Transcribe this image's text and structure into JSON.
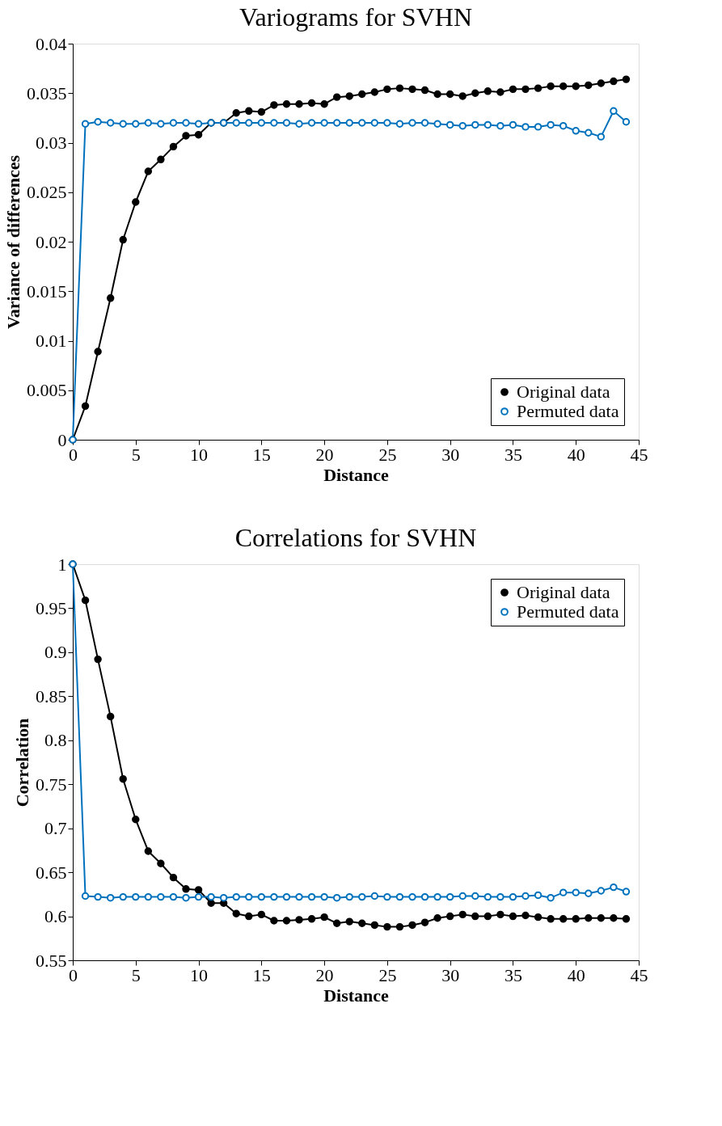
{
  "chart_data": [
    {
      "type": "line",
      "title": "Variograms for SVHN",
      "xlabel": "Distance",
      "ylabel": "Variance of differences",
      "x": [
        0,
        1,
        2,
        3,
        4,
        5,
        6,
        7,
        8,
        9,
        10,
        11,
        12,
        13,
        14,
        15,
        16,
        17,
        18,
        19,
        20,
        21,
        22,
        23,
        24,
        25,
        26,
        27,
        28,
        29,
        30,
        31,
        32,
        33,
        34,
        35,
        36,
        37,
        38,
        39,
        40,
        41,
        42,
        43,
        44
      ],
      "series": [
        {
          "name": "Original data",
          "color": "#000000",
          "values": [
            0,
            0.0034,
            0.0089,
            0.0143,
            0.0202,
            0.024,
            0.0271,
            0.0283,
            0.0296,
            0.0307,
            0.0308,
            0.032,
            0.032,
            0.033,
            0.0332,
            0.0331,
            0.0338,
            0.0339,
            0.0339,
            0.034,
            0.0339,
            0.0346,
            0.0347,
            0.0349,
            0.0351,
            0.0354,
            0.0355,
            0.0354,
            0.0353,
            0.0349,
            0.0349,
            0.0347,
            0.035,
            0.0352,
            0.0351,
            0.0354,
            0.0354,
            0.0355,
            0.0357,
            0.0357,
            0.0357,
            0.0358,
            0.036,
            0.0362,
            0.0364
          ]
        },
        {
          "name": "Permuted data",
          "color": "#0072bd",
          "values": [
            0,
            0.0319,
            0.0321,
            0.032,
            0.0319,
            0.0319,
            0.032,
            0.0319,
            0.032,
            0.032,
            0.0319,
            0.032,
            0.032,
            0.032,
            0.032,
            0.032,
            0.032,
            0.032,
            0.0319,
            0.032,
            0.032,
            0.032,
            0.032,
            0.032,
            0.032,
            0.032,
            0.0319,
            0.032,
            0.032,
            0.0319,
            0.0318,
            0.0317,
            0.0318,
            0.0318,
            0.0317,
            0.0318,
            0.0316,
            0.0316,
            0.0318,
            0.0317,
            0.0312,
            0.031,
            0.0306,
            0.0332,
            0.0321
          ]
        }
      ],
      "xlim": [
        0,
        45
      ],
      "xticks": [
        0,
        5,
        10,
        15,
        20,
        25,
        30,
        35,
        40,
        45
      ],
      "ylim": [
        0,
        0.04
      ],
      "yticks": [
        0,
        0.005,
        0.01,
        0.015,
        0.02,
        0.025,
        0.03,
        0.035,
        0.04
      ],
      "marker": "circle",
      "line_style": "solid",
      "grid": false,
      "legend": "bottom right"
    },
    {
      "type": "line",
      "title": "Correlations for SVHN",
      "xlabel": "Distance",
      "ylabel": "Correlation",
      "x": [
        0,
        1,
        2,
        3,
        4,
        5,
        6,
        7,
        8,
        9,
        10,
        11,
        12,
        13,
        14,
        15,
        16,
        17,
        18,
        19,
        20,
        21,
        22,
        23,
        24,
        25,
        26,
        27,
        28,
        29,
        30,
        31,
        32,
        33,
        34,
        35,
        36,
        37,
        38,
        39,
        40,
        41,
        42,
        43,
        44
      ],
      "series": [
        {
          "name": "Original data",
          "color": "#000000",
          "values": [
            1,
            0.959,
            0.892,
            0.827,
            0.756,
            0.71,
            0.674,
            0.66,
            0.644,
            0.631,
            0.63,
            0.615,
            0.615,
            0.603,
            0.6,
            0.602,
            0.595,
            0.595,
            0.596,
            0.597,
            0.599,
            0.592,
            0.594,
            0.592,
            0.59,
            0.588,
            0.588,
            0.59,
            0.593,
            0.598,
            0.6,
            0.602,
            0.6,
            0.6,
            0.602,
            0.6,
            0.601,
            0.599,
            0.597,
            0.597,
            0.597,
            0.598,
            0.598,
            0.598,
            0.597
          ]
        },
        {
          "name": "Permuted data",
          "color": "#0072bd",
          "values": [
            1,
            0.623,
            0.622,
            0.621,
            0.622,
            0.622,
            0.622,
            0.622,
            0.622,
            0.621,
            0.622,
            0.622,
            0.621,
            0.622,
            0.622,
            0.622,
            0.622,
            0.622,
            0.622,
            0.622,
            0.622,
            0.621,
            0.622,
            0.622,
            0.623,
            0.622,
            0.622,
            0.622,
            0.622,
            0.622,
            0.622,
            0.623,
            0.623,
            0.622,
            0.622,
            0.622,
            0.623,
            0.624,
            0.621,
            0.627,
            0.627,
            0.626,
            0.629,
            0.633,
            0.628
          ]
        }
      ],
      "xlim": [
        0,
        45
      ],
      "xticks": [
        0,
        5,
        10,
        15,
        20,
        25,
        30,
        35,
        40,
        45
      ],
      "ylim": [
        0.55,
        1
      ],
      "yticks": [
        0.55,
        0.6,
        0.65,
        0.7,
        0.75,
        0.8,
        0.85,
        0.9,
        0.95,
        1
      ],
      "marker": "circle",
      "line_style": "solid",
      "grid": false,
      "legend": "top right"
    }
  ]
}
